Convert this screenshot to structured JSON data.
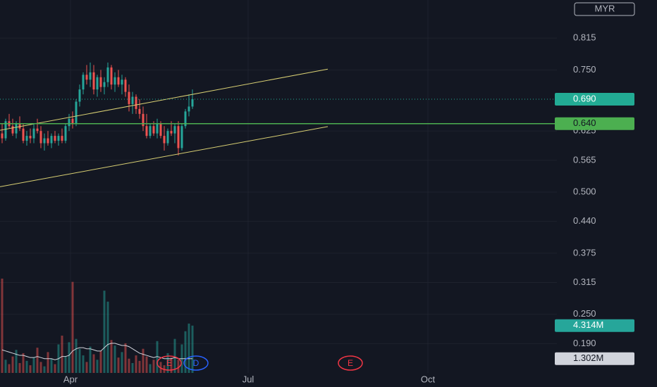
{
  "chart_data": {
    "type": "candlestick",
    "currency": "MYR",
    "x": [
      0,
      1,
      2,
      3,
      4,
      5,
      6,
      7,
      8,
      9,
      10,
      11,
      12,
      13,
      14,
      15,
      16,
      17,
      18,
      19,
      20,
      21,
      22,
      23,
      24,
      25,
      26,
      27,
      28,
      29,
      30,
      31,
      32,
      33,
      34,
      35,
      36,
      37,
      38,
      39,
      40,
      41,
      42,
      43,
      44,
      45,
      46,
      47,
      48,
      49,
      50,
      51,
      52,
      53,
      54
    ],
    "open": [
      0.62,
      0.61,
      0.645,
      0.635,
      0.62,
      0.64,
      0.63,
      0.605,
      0.615,
      0.61,
      0.63,
      0.625,
      0.6,
      0.61,
      0.6,
      0.615,
      0.605,
      0.615,
      0.605,
      0.635,
      0.65,
      0.64,
      0.685,
      0.71,
      0.74,
      0.73,
      0.745,
      0.71,
      0.735,
      0.715,
      0.725,
      0.755,
      0.72,
      0.735,
      0.72,
      0.73,
      0.705,
      0.68,
      0.695,
      0.67,
      0.66,
      0.635,
      0.615,
      0.635,
      0.62,
      0.64,
      0.615,
      0.6,
      0.625,
      0.62,
      0.635,
      0.59,
      0.635,
      0.665,
      0.675
    ],
    "high": [
      0.64,
      0.65,
      0.66,
      0.65,
      0.645,
      0.655,
      0.64,
      0.625,
      0.63,
      0.64,
      0.65,
      0.635,
      0.62,
      0.625,
      0.62,
      0.625,
      0.62,
      0.63,
      0.64,
      0.66,
      0.665,
      0.69,
      0.72,
      0.745,
      0.76,
      0.765,
      0.76,
      0.74,
      0.75,
      0.735,
      0.765,
      0.76,
      0.745,
      0.75,
      0.74,
      0.735,
      0.72,
      0.705,
      0.7,
      0.69,
      0.675,
      0.66,
      0.64,
      0.645,
      0.65,
      0.645,
      0.635,
      0.63,
      0.645,
      0.64,
      0.645,
      0.64,
      0.67,
      0.7,
      0.71
    ],
    "low": [
      0.6,
      0.605,
      0.63,
      0.615,
      0.61,
      0.625,
      0.6,
      0.595,
      0.6,
      0.6,
      0.62,
      0.59,
      0.585,
      0.595,
      0.59,
      0.6,
      0.595,
      0.6,
      0.6,
      0.625,
      0.63,
      0.635,
      0.675,
      0.7,
      0.72,
      0.715,
      0.7,
      0.695,
      0.705,
      0.7,
      0.715,
      0.71,
      0.705,
      0.715,
      0.7,
      0.695,
      0.665,
      0.66,
      0.66,
      0.65,
      0.625,
      0.61,
      0.61,
      0.615,
      0.61,
      0.61,
      0.585,
      0.595,
      0.615,
      0.6,
      0.575,
      0.585,
      0.63,
      0.655,
      0.67
    ],
    "close": [
      0.61,
      0.645,
      0.635,
      0.62,
      0.64,
      0.63,
      0.605,
      0.615,
      0.61,
      0.63,
      0.625,
      0.6,
      0.61,
      0.6,
      0.615,
      0.605,
      0.615,
      0.605,
      0.635,
      0.65,
      0.64,
      0.685,
      0.71,
      0.74,
      0.73,
      0.745,
      0.71,
      0.735,
      0.715,
      0.725,
      0.755,
      0.72,
      0.735,
      0.72,
      0.73,
      0.705,
      0.68,
      0.695,
      0.67,
      0.66,
      0.635,
      0.615,
      0.635,
      0.62,
      0.64,
      0.615,
      0.6,
      0.625,
      0.62,
      0.635,
      0.59,
      0.635,
      0.665,
      0.675,
      0.69
    ],
    "up_color": "#26a69a",
    "down_color": "#ef5350",
    "volume": {
      "values": [
        8.6,
        1.2,
        0.8,
        1.5,
        2.1,
        0.9,
        1.8,
        1.1,
        0.7,
        1.4,
        2.3,
        1.0,
        0.6,
        1.9,
        1.3,
        0.8,
        2.6,
        3.4,
        1.5,
        2.8,
        8.3,
        3.1,
        2.2,
        1.6,
        1.0,
        2.4,
        1.7,
        1.2,
        2.0,
        7.5,
        6.5,
        3.0,
        2.5,
        1.4,
        1.9,
        2.7,
        1.3,
        0.9,
        1.6,
        1.1,
        2.2,
        1.5,
        0.8,
        1.2,
        2.9,
        1.0,
        0.7,
        1.8,
        1.4,
        3.1,
        1.2,
        2.6,
        3.8,
        4.5,
        4.314
      ],
      "value_labels": [
        null,
        null,
        null,
        null,
        null,
        null,
        null,
        null,
        null,
        null,
        null,
        null,
        null,
        null,
        null,
        null,
        null,
        null,
        null,
        null,
        null,
        null,
        null,
        null,
        null,
        null,
        null,
        null,
        null,
        null,
        null,
        null,
        null,
        null,
        null,
        null,
        null,
        null,
        null,
        null,
        null,
        null,
        null,
        null,
        null,
        null,
        null,
        null,
        null,
        null,
        null,
        null,
        null,
        null,
        "4.314M"
      ]
    },
    "volume_ma": {
      "values": [
        2.1,
        2.0,
        1.9,
        1.8,
        1.7,
        1.6,
        1.6,
        1.5,
        1.4,
        1.4,
        1.5,
        1.4,
        1.3,
        1.3,
        1.3,
        1.2,
        1.3,
        1.5,
        1.5,
        1.6,
        2.0,
        2.2,
        2.3,
        2.3,
        2.2,
        2.2,
        2.1,
        2.0,
        2.0,
        2.3,
        2.6,
        2.7,
        2.7,
        2.6,
        2.5,
        2.5,
        2.4,
        2.2,
        2.0,
        1.8,
        1.7,
        1.6,
        1.5,
        1.4,
        1.5,
        1.4,
        1.3,
        1.3,
        1.3,
        1.4,
        1.3,
        1.3,
        1.3,
        1.3,
        1.302
      ],
      "value_labels": [
        null,
        null,
        null,
        null,
        null,
        null,
        null,
        null,
        null,
        null,
        null,
        null,
        null,
        null,
        null,
        null,
        null,
        null,
        null,
        null,
        null,
        null,
        null,
        null,
        null,
        null,
        null,
        null,
        null,
        null,
        null,
        null,
        null,
        null,
        null,
        null,
        null,
        null,
        null,
        null,
        null,
        null,
        null,
        null,
        null,
        null,
        null,
        null,
        null,
        null,
        null,
        null,
        null,
        null,
        "1.302M"
      ],
      "color": "#d1d4dc"
    },
    "vlim": [
      0,
      34
    ],
    "xlim": [
      -0.6,
      157.4
    ],
    "ylim": [
      0.13,
      0.893
    ],
    "xticks": [
      {
        "value": 19.4,
        "label": "Apr"
      },
      {
        "value": 69.8,
        "label": "Jul"
      },
      {
        "value": 120.8,
        "label": "Oct"
      }
    ],
    "yticks": [
      0.815,
      {
        "value": 0.75,
        "label": "0.750"
      },
      0.625,
      0.565,
      {
        "value": 0.5,
        "label": "0.500"
      },
      {
        "value": 0.44,
        "label": "0.440"
      },
      0.375,
      0.315,
      {
        "value": 0.25,
        "label": "0.250"
      },
      {
        "value": 0.19,
        "label": "0.190"
      }
    ],
    "grid": true,
    "last_price": {
      "value": 0.69,
      "label": "0.690",
      "color": "#22ab94"
    },
    "hline": {
      "value": 0.64,
      "label": "0.640",
      "color": "#4caf50"
    },
    "trendlines": [
      {
        "x": [
          -0.6,
          92.4
        ],
        "y": [
          0.6264,
          0.7516
        ],
        "color": "#d8cf73"
      },
      {
        "x": [
          -0.6,
          92.4
        ],
        "y": [
          0.511,
          0.634
        ],
        "color": "#d8cf73"
      }
    ],
    "events": [
      {
        "x": 47.4,
        "label": "E",
        "color": "#f23645"
      },
      {
        "x": 55,
        "label": "D",
        "color": "#2962ff"
      },
      {
        "x": 98.8,
        "label": "E",
        "color": "#f23645"
      }
    ]
  }
}
